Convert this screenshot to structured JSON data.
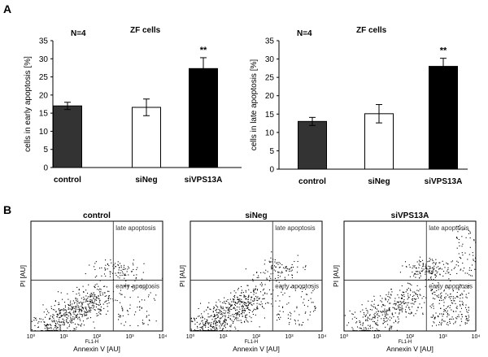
{
  "panel_labels": {
    "a": "A",
    "b": "B"
  },
  "chart_data": [
    {
      "type": "bar",
      "title": "ZF cells",
      "n_label": "N=4",
      "xlabel": "",
      "ylabel": "cells in early apoptosis [%]",
      "ylim": [
        0,
        35
      ],
      "yticks": [
        0,
        5,
        10,
        15,
        20,
        25,
        30,
        35
      ],
      "categories": [
        "control",
        "siNeg",
        "siVPS13A"
      ],
      "values": [
        17.0,
        16.6,
        27.3
      ],
      "errors": [
        1.0,
        2.3,
        3.0
      ],
      "colors": [
        "#333333",
        "#ffffff",
        "#000000"
      ],
      "annotations": [
        "",
        "",
        "**"
      ]
    },
    {
      "type": "bar",
      "title": "ZF cells",
      "n_label": "N=4",
      "xlabel": "",
      "ylabel": "cells in late apoptosis [%]",
      "ylim": [
        0,
        35
      ],
      "yticks": [
        0,
        5,
        10,
        15,
        20,
        25,
        30,
        35
      ],
      "categories": [
        "control",
        "siNeg",
        "siVPS13A"
      ],
      "values": [
        13.0,
        15.1,
        28.0
      ],
      "errors": [
        1.1,
        2.5,
        2.2
      ],
      "colors": [
        "#333333",
        "#ffffff",
        "#000000"
      ],
      "annotations": [
        "",
        "",
        "**"
      ]
    },
    {
      "type": "scatter",
      "title": "control",
      "xlabel": "Annexin V [AU]",
      "ylabel": "PI [AU]",
      "axis_code": "FL1-H",
      "xlim": [
        0,
        4
      ],
      "x_tick_labels": [
        "10⁰",
        "10¹",
        "10²",
        "10³",
        "10⁴"
      ],
      "gate_x": 2.5,
      "gate_y": 1.85,
      "quadrant_labels": [
        "late apoptosis",
        "early apoptosis"
      ]
    },
    {
      "type": "scatter",
      "title": "siNeg",
      "xlabel": "Annexin V [AU]",
      "ylabel": "PI [AU]",
      "axis_code": "FL1-H",
      "xlim": [
        0,
        4
      ],
      "x_tick_labels": [
        "10⁰",
        "10¹",
        "10²",
        "10³",
        "10⁴"
      ],
      "gate_x": 2.5,
      "gate_y": 1.85,
      "quadrant_labels": [
        "late apoptosis",
        "early apoptosis"
      ]
    },
    {
      "type": "scatter",
      "title": "siVPS13A",
      "xlabel": "Annexin V [AU]",
      "ylabel": "PI [AU]",
      "axis_code": "FL1-H",
      "xlim": [
        0,
        4
      ],
      "x_tick_labels": [
        "10⁰",
        "10¹",
        "10²",
        "10³",
        "10⁴"
      ],
      "gate_x": 2.5,
      "gate_y": 1.85,
      "quadrant_labels": [
        "late apoptosis",
        "early apoptosis"
      ]
    }
  ]
}
